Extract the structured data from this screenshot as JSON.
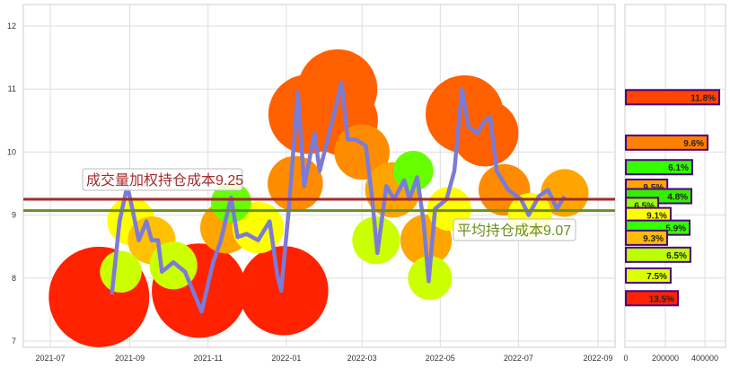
{
  "chart_data": [
    {
      "type": "line",
      "xlabel": "",
      "ylabel": "",
      "ylim": [
        6.9,
        12.25
      ],
      "xlim": [
        "2021-06-15",
        "2022-09-15"
      ],
      "grid": true,
      "x_ticks": [
        "2021-07",
        "2021-09",
        "2021-11",
        "2022-01",
        "2022-03",
        "2022-05",
        "2022-07",
        "2022-09"
      ],
      "y_ticks": [
        7,
        8,
        9,
        10,
        11,
        12
      ],
      "line_color": "#7b7bd8",
      "series": [
        {
          "x": [
            "2021-08-18",
            "2021-08-24",
            "2021-08-30",
            "2021-09-03",
            "2021-09-08",
            "2021-09-14",
            "2021-09-18",
            "2021-09-23",
            "2021-09-26",
            "2021-10-05",
            "2021-10-14",
            "2021-10-27",
            "2021-11-05",
            "2021-11-11",
            "2021-11-19",
            "2021-11-24",
            "2021-12-01",
            "2021-12-10",
            "2021-12-19",
            "2021-12-25",
            "2021-12-28",
            "2022-01-03",
            "2022-01-10",
            "2022-01-15",
            "2022-01-23",
            "2022-01-27",
            "2022-02-09",
            "2022-02-13",
            "2022-02-18",
            "2022-02-24",
            "2022-03-04",
            "2022-03-09",
            "2022-03-13",
            "2022-03-20",
            "2022-03-26",
            "2022-04-03",
            "2022-04-07",
            "2022-04-13",
            "2022-04-18",
            "2022-04-22",
            "2022-04-27",
            "2022-05-06",
            "2022-05-12",
            "2022-05-18",
            "2022-05-23",
            "2022-05-30",
            "2022-06-05",
            "2022-06-09",
            "2022-06-14",
            "2022-06-23",
            "2022-07-03",
            "2022-07-09",
            "2022-07-17",
            "2022-07-24",
            "2022-07-31",
            "2022-08-06"
          ],
          "values": [
            7.74,
            8.9,
            9.46,
            9.1,
            8.6,
            8.9,
            8.6,
            8.6,
            8.1,
            8.25,
            8.1,
            7.47,
            8.25,
            8.6,
            9.28,
            8.65,
            8.7,
            8.6,
            8.9,
            8.05,
            7.8,
            9.1,
            10.95,
            9.46,
            10.3,
            9.7,
            10.75,
            11.1,
            10.2,
            10.2,
            10.1,
            9.25,
            8.4,
            9.46,
            9.25,
            9.55,
            9.25,
            9.6,
            8.9,
            7.95,
            9.1,
            9.25,
            9.7,
            11.0,
            10.4,
            10.3,
            10.5,
            10.55,
            9.7,
            9.4,
            9.25,
            9.0,
            9.3,
            9.4,
            9.1,
            9.3
          ]
        }
      ],
      "bubbles": [
        {
          "x": "2021-08-08",
          "value": 7.7,
          "color": "#ff2200",
          "weight": 1.0
        },
        {
          "x": "2021-10-25",
          "value": 7.8,
          "color": "#ff2200",
          "weight": 0.92
        },
        {
          "x": "2021-12-30",
          "value": 7.8,
          "color": "#ff2200",
          "weight": 0.85
        },
        {
          "x": "2022-01-18",
          "value": 10.6,
          "color": "#ff6000",
          "weight": 0.72
        },
        {
          "x": "2022-02-10",
          "value": 11.0,
          "color": "#ff6000",
          "weight": 0.72
        },
        {
          "x": "2022-02-14",
          "value": 10.5,
          "color": "#ff6000",
          "weight": 0.6
        },
        {
          "x": "2022-05-20",
          "value": 10.6,
          "color": "#ff6000",
          "weight": 0.7
        },
        {
          "x": "2022-06-05",
          "value": 10.3,
          "color": "#ff6000",
          "weight": 0.55
        },
        {
          "x": "2022-01-08",
          "value": 9.5,
          "color": "#ff8c00",
          "weight": 0.4
        },
        {
          "x": "2022-03-01",
          "value": 10.0,
          "color": "#ff8c00",
          "weight": 0.4
        },
        {
          "x": "2022-03-25",
          "value": 9.4,
          "color": "#ffa500",
          "weight": 0.4
        },
        {
          "x": "2022-04-20",
          "value": 8.6,
          "color": "#ffa500",
          "weight": 0.35
        },
        {
          "x": "2022-06-20",
          "value": 9.4,
          "color": "#ff8c00",
          "weight": 0.35
        },
        {
          "x": "2022-08-06",
          "value": 9.35,
          "color": "#ffa500",
          "weight": 0.3
        },
        {
          "x": "2021-09-02",
          "value": 8.9,
          "color": "#ffff00",
          "weight": 0.3
        },
        {
          "x": "2021-11-15",
          "value": 8.8,
          "color": "#ffa500",
          "weight": 0.35
        },
        {
          "x": "2021-12-10",
          "value": 8.8,
          "color": "#ffff00",
          "weight": 0.35
        },
        {
          "x": "2021-09-18",
          "value": 8.6,
          "color": "#ffc000",
          "weight": 0.3
        },
        {
          "x": "2021-10-05",
          "value": 8.2,
          "color": "#ccff00",
          "weight": 0.3
        },
        {
          "x": "2022-03-12",
          "value": 8.6,
          "color": "#ccff00",
          "weight": 0.3
        },
        {
          "x": "2022-04-23",
          "value": 8.0,
          "color": "#ccff00",
          "weight": 0.25
        },
        {
          "x": "2022-05-08",
          "value": 9.1,
          "color": "#ffff00",
          "weight": 0.25
        },
        {
          "x": "2022-07-10",
          "value": 9.0,
          "color": "#ffff00",
          "weight": 0.25
        },
        {
          "x": "2021-08-25",
          "value": 8.1,
          "color": "#ccff00",
          "weight": 0.22
        },
        {
          "x": "2021-11-19",
          "value": 9.2,
          "color": "#66ff00",
          "weight": 0.2
        },
        {
          "x": "2022-04-10",
          "value": 9.7,
          "color": "#66ff00",
          "weight": 0.2
        }
      ],
      "reference_lines": [
        {
          "value": 9.25,
          "label": "成交量加权持仓成本9.25",
          "color": "#a52a2a"
        },
        {
          "value": 9.07,
          "label": "平均持仓成本9.07",
          "color": "#6b8e23"
        }
      ]
    },
    {
      "type": "bar",
      "orientation": "horizontal",
      "xlim": [
        0,
        500000
      ],
      "x_ticks": [
        "0",
        "200000",
        "400000"
      ],
      "ylim": [
        6.9,
        12.25
      ],
      "bar_border": "#4b0082",
      "bars": [
        {
          "price": 10.87,
          "volume": 473000,
          "label": "11.8%",
          "color": "#ff4500"
        },
        {
          "price": 10.15,
          "volume": 414000,
          "label": "9.6%",
          "color": "#ff7f00"
        },
        {
          "price": 9.76,
          "volume": 336000,
          "label": "6.1%",
          "color": "#33ff00"
        },
        {
          "price": 9.45,
          "volume": 210000,
          "label": "9.5%",
          "color": "#ffa500"
        },
        {
          "price": 9.3,
          "volume": 332000,
          "label": "4.8%",
          "color": "#33ee00"
        },
        {
          "price": 9.16,
          "volume": 164000,
          "label": "6.5%",
          "color": "#99ff00"
        },
        {
          "price": 9.0,
          "volume": 227000,
          "label": "9.1%",
          "color": "#ffff00"
        },
        {
          "price": 8.8,
          "volume": 323000,
          "label": "5.9%",
          "color": "#33ff00"
        },
        {
          "price": 8.64,
          "volume": 209000,
          "label": "9.3%",
          "color": "#ffbb00"
        },
        {
          "price": 8.37,
          "volume": 327000,
          "label": "6.5%",
          "color": "#bbff00"
        },
        {
          "price": 8.04,
          "volume": 227000,
          "label": "7.5%",
          "color": "#ddff00"
        },
        {
          "price": 7.68,
          "volume": 264000,
          "label": "13.5%",
          "color": "#ff2200"
        }
      ]
    }
  ]
}
